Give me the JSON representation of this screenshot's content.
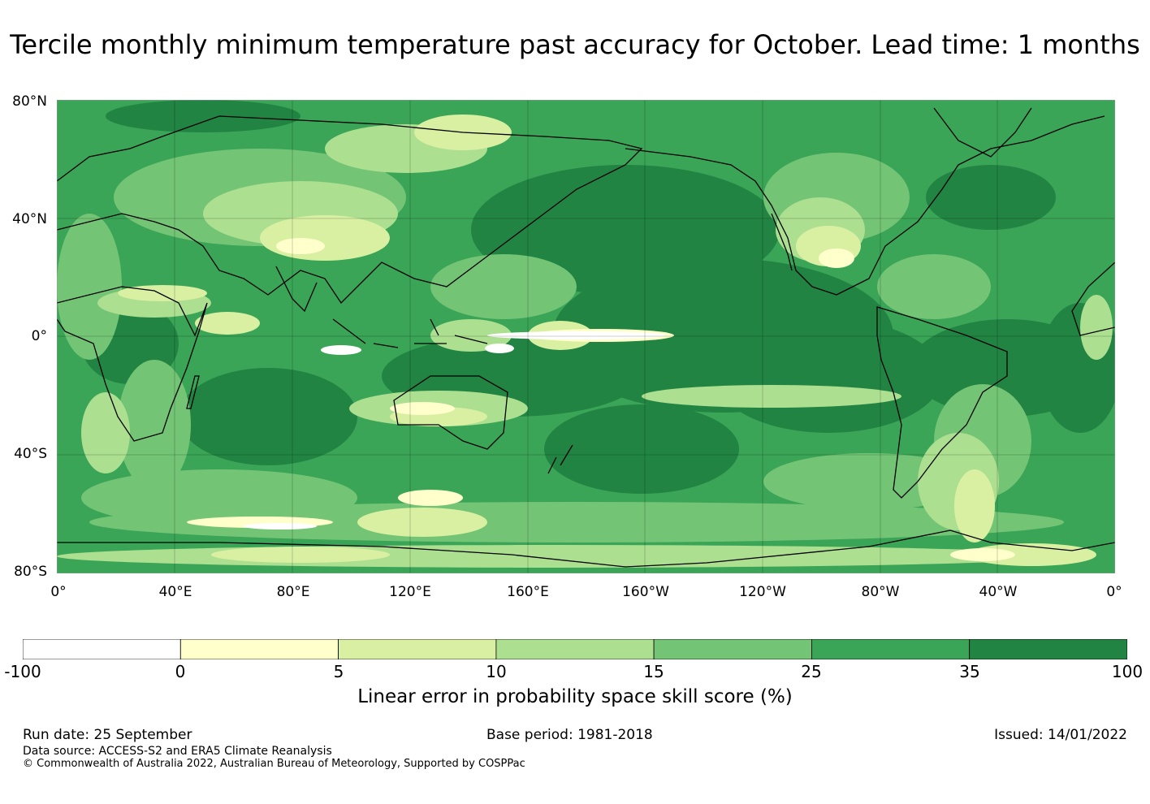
{
  "title": "Tercile monthly minimum temperature past accuracy for October. Lead time: 1 months",
  "map": {
    "latitude_labels": [
      "80°N",
      "40°N",
      "0°",
      "40°S",
      "80°S"
    ],
    "longitude_labels": [
      "0°",
      "40°E",
      "80°E",
      "120°E",
      "160°E",
      "160°W",
      "120°W",
      "80°W",
      "40°W",
      "0°"
    ],
    "colors": {
      "ocean_base": "#3aa457",
      "strong": "#228443",
      "medium": "#74c476",
      "light": "#addf91",
      "pale": "#d9f0a3",
      "very_pale": "#ffffcc",
      "coast": "#000000"
    }
  },
  "colorbar": {
    "ticks": [
      "-100",
      "0",
      "5",
      "10",
      "15",
      "25",
      "35",
      "100"
    ],
    "colors": [
      "#ffffff",
      "#ffffcc",
      "#d9f0a3",
      "#addf91",
      "#74c476",
      "#3aa457",
      "#228443"
    ],
    "label": "Linear error in probability space skill score (%)"
  },
  "footer": {
    "run_date": "Run date: 25 September",
    "base_period": "Base period: 1981-2018",
    "issued": "Issued: 14/01/2022",
    "data_source": "Data source: ACCESS-S2 and ERA5 Climate Reanalysis",
    "copyright": "© Commonwealth of Australia 2022, Australian Bureau of Meteorology, Supported by COSPPac"
  }
}
